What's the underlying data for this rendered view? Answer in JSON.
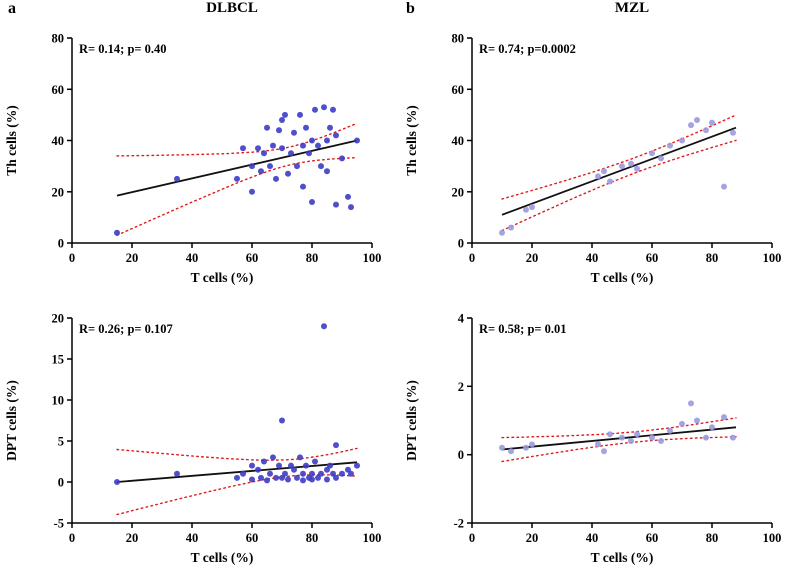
{
  "panels": [
    {
      "label": "a",
      "title": "DLBCL"
    },
    {
      "label": "b",
      "title": "MZL"
    }
  ],
  "colors": {
    "axis": "#000000",
    "regression_line": "#111111",
    "ci_band": "#e01b1b",
    "dlbcl_points": "#3c3cc8",
    "mzl_points": "#9a9ae0"
  },
  "chart_data": [
    {
      "type": "scatter",
      "panel": "DLBCL",
      "annotation": "R= 0.14; p= 0.40",
      "r": 0.14,
      "p": "0.40",
      "xlabel": "T cells (%)",
      "ylabel": "Th cells (%)",
      "xlim": [
        0,
        100
      ],
      "ylim": [
        0,
        80
      ],
      "xticks": [
        0,
        20,
        40,
        60,
        80,
        100
      ],
      "yticks": [
        0,
        20,
        40,
        60,
        80
      ],
      "grid": false,
      "point_color": "#3c3cc8",
      "points": [
        [
          15,
          4
        ],
        [
          35,
          25
        ],
        [
          55,
          25
        ],
        [
          57,
          37
        ],
        [
          60,
          30
        ],
        [
          60,
          20
        ],
        [
          62,
          37
        ],
        [
          63,
          28
        ],
        [
          64,
          35
        ],
        [
          65,
          45
        ],
        [
          66,
          30
        ],
        [
          67,
          38
        ],
        [
          68,
          25
        ],
        [
          69,
          44
        ],
        [
          70,
          37
        ],
        [
          70,
          48
        ],
        [
          71,
          50
        ],
        [
          72,
          27
        ],
        [
          73,
          35
        ],
        [
          74,
          43
        ],
        [
          75,
          30
        ],
        [
          76,
          50
        ],
        [
          77,
          38
        ],
        [
          77,
          22
        ],
        [
          78,
          45
        ],
        [
          79,
          35
        ],
        [
          80,
          40
        ],
        [
          80,
          16
        ],
        [
          81,
          52
        ],
        [
          82,
          38
        ],
        [
          83,
          30
        ],
        [
          84,
          53
        ],
        [
          85,
          40
        ],
        [
          85,
          28
        ],
        [
          86,
          45
        ],
        [
          87,
          52
        ],
        [
          88,
          42
        ],
        [
          88,
          15
        ],
        [
          90,
          33
        ],
        [
          92,
          18
        ],
        [
          93,
          14
        ],
        [
          95,
          40
        ]
      ],
      "fit": {
        "x": [
          15,
          95
        ],
        "y": [
          18.5,
          40
        ]
      },
      "ci": {
        "center": 73,
        "min_halfwidth": 3.5,
        "flare": 0.26,
        "color": "#e01b1b"
      }
    },
    {
      "type": "scatter",
      "panel": "MZL",
      "annotation": "R= 0.74; p=0.0002",
      "r": 0.74,
      "p": "0.0002",
      "xlabel": "T cells (%)",
      "ylabel": "Th cells (%)",
      "xlim": [
        0,
        100
      ],
      "ylim": [
        0,
        80
      ],
      "xticks": [
        0,
        20,
        40,
        60,
        80,
        100
      ],
      "yticks": [
        0,
        20,
        40,
        60,
        80
      ],
      "grid": false,
      "point_color": "#9a9ae0",
      "points": [
        [
          10,
          4
        ],
        [
          13,
          6
        ],
        [
          18,
          13
        ],
        [
          20,
          14
        ],
        [
          42,
          26
        ],
        [
          44,
          28
        ],
        [
          46,
          24
        ],
        [
          50,
          30
        ],
        [
          53,
          31
        ],
        [
          55,
          29
        ],
        [
          60,
          35
        ],
        [
          63,
          33
        ],
        [
          66,
          38
        ],
        [
          70,
          40
        ],
        [
          73,
          46
        ],
        [
          75,
          48
        ],
        [
          78,
          44
        ],
        [
          80,
          47
        ],
        [
          84,
          22
        ],
        [
          87,
          43
        ]
      ],
      "fit": {
        "x": [
          10,
          88
        ],
        "y": [
          11,
          45
        ]
      },
      "ci": {
        "center": 55,
        "min_halfwidth": 3,
        "flare": 0.12,
        "color": "#e01b1b"
      }
    },
    {
      "type": "scatter",
      "panel": "DLBCL",
      "annotation": "R= 0.26; p= 0.107",
      "r": 0.26,
      "p": "0.107",
      "xlabel": "T cells (%)",
      "ylabel": "DPT cells (%)",
      "xlim": [
        0,
        100
      ],
      "ylim": [
        -5,
        20
      ],
      "xticks": [
        0,
        20,
        40,
        60,
        80,
        100
      ],
      "yticks": [
        -5,
        0,
        5,
        10,
        15,
        20
      ],
      "grid": false,
      "point_color": "#3c3cc8",
      "points": [
        [
          15,
          0
        ],
        [
          35,
          1
        ],
        [
          55,
          0.5
        ],
        [
          57,
          1
        ],
        [
          60,
          0.3
        ],
        [
          60,
          2
        ],
        [
          62,
          1.5
        ],
        [
          63,
          0.5
        ],
        [
          64,
          2.5
        ],
        [
          65,
          0.2
        ],
        [
          66,
          1
        ],
        [
          67,
          3
        ],
        [
          68,
          0.5
        ],
        [
          69,
          2
        ],
        [
          70,
          7.5
        ],
        [
          70,
          0.5
        ],
        [
          71,
          1
        ],
        [
          72,
          0.3
        ],
        [
          73,
          2
        ],
        [
          74,
          1.5
        ],
        [
          75,
          0.5
        ],
        [
          76,
          3
        ],
        [
          77,
          1
        ],
        [
          77,
          0.2
        ],
        [
          78,
          2
        ],
        [
          79,
          0.5
        ],
        [
          80,
          1
        ],
        [
          80,
          0.3
        ],
        [
          81,
          2.5
        ],
        [
          82,
          0.5
        ],
        [
          83,
          1
        ],
        [
          84,
          19
        ],
        [
          85,
          1.5
        ],
        [
          85,
          0.3
        ],
        [
          86,
          2
        ],
        [
          87,
          1
        ],
        [
          88,
          0.5
        ],
        [
          88,
          4.5
        ],
        [
          90,
          1
        ],
        [
          92,
          1.5
        ],
        [
          93,
          1
        ],
        [
          95,
          2
        ]
      ],
      "fit": {
        "x": [
          15,
          95
        ],
        "y": [
          0,
          2.4
        ]
      },
      "ci": {
        "center": 74,
        "min_halfwidth": 1.0,
        "flare": 0.065,
        "color": "#e01b1b"
      }
    },
    {
      "type": "scatter",
      "panel": "MZL",
      "annotation": "R= 0.58; p= 0.01",
      "r": 0.58,
      "p": "0.01",
      "xlabel": "T cells (%)",
      "ylabel": "DPT cells (%)",
      "xlim": [
        0,
        100
      ],
      "ylim": [
        -2,
        4
      ],
      "xticks": [
        0,
        20,
        40,
        60,
        80,
        100
      ],
      "yticks": [
        -2,
        0,
        2,
        4
      ],
      "grid": false,
      "point_color": "#9a9ae0",
      "points": [
        [
          10,
          0.2
        ],
        [
          13,
          0.1
        ],
        [
          18,
          0.2
        ],
        [
          20,
          0.3
        ],
        [
          42,
          0.3
        ],
        [
          44,
          0.1
        ],
        [
          46,
          0.6
        ],
        [
          50,
          0.5
        ],
        [
          53,
          0.4
        ],
        [
          55,
          0.6
        ],
        [
          60,
          0.5
        ],
        [
          63,
          0.4
        ],
        [
          66,
          0.7
        ],
        [
          70,
          0.9
        ],
        [
          73,
          1.5
        ],
        [
          75,
          1.0
        ],
        [
          78,
          0.5
        ],
        [
          80,
          0.8
        ],
        [
          84,
          1.1
        ],
        [
          87,
          0.5
        ]
      ],
      "fit": {
        "x": [
          10,
          88
        ],
        "y": [
          0.15,
          0.8
        ]
      },
      "ci": {
        "center": 55,
        "min_halfwidth": 0.15,
        "flare": 0.007,
        "color": "#e01b1b"
      }
    }
  ]
}
